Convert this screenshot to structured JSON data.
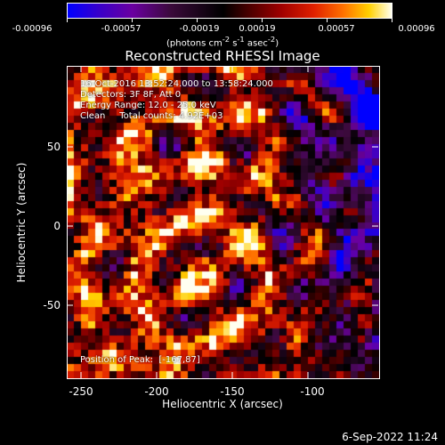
{
  "colorbar": {
    "ticks": [
      "-0.00096",
      "-0.00057",
      "-0.00019",
      "0.00019",
      "0.00057",
      "0.00096"
    ],
    "units_html": "(photons cm<sup>-2</sup> s<sup>-1</sup> asec<sup>-2</sup>)"
  },
  "title": "Reconstructed RHESSI Image",
  "overlay": {
    "time_range": "16-Oct-2016 13:52:24.000 to 13:58:24.000",
    "detectors": "Detectors: 3F 8F, Att 0",
    "energy": "Energy Range: 12.0 - 25.0 keV",
    "clean": "Clean     Total counts: 4.92E+03",
    "peak": "Position of Peak:  [-167,87]"
  },
  "axes": {
    "xlabel": "Heliocentric X (arcsec)",
    "ylabel": "Heliocentric Y (arcsec)",
    "xticks": [
      "-250",
      "-200",
      "-150",
      "-100"
    ],
    "yticks": [
      "50",
      "0",
      "-50"
    ]
  },
  "footer_date": "6-Sep-2022 11:24"
}
